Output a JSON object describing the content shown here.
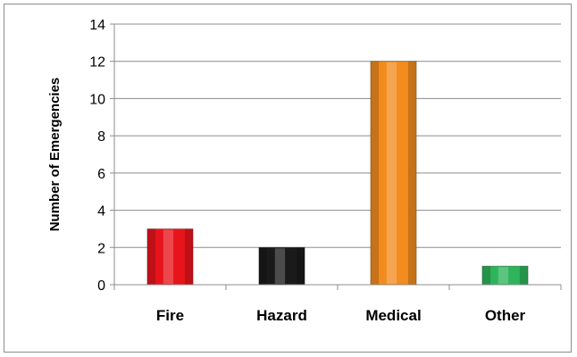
{
  "chart_data": {
    "type": "bar",
    "categories": [
      "Fire",
      "Hazard",
      "Medical",
      "Other"
    ],
    "values": [
      3,
      2,
      12,
      1
    ],
    "bar_colors": [
      "#e8141b",
      "#1a1a1a",
      "#f28c1e",
      "#2eb45a"
    ],
    "title": "",
    "xlabel": "",
    "ylabel": "Number of Emergencies",
    "ylim": [
      0,
      14
    ],
    "yticks": [
      "0",
      "2",
      "4",
      "6",
      "8",
      "10",
      "12",
      "14"
    ],
    "grid": true,
    "legend": "none"
  }
}
